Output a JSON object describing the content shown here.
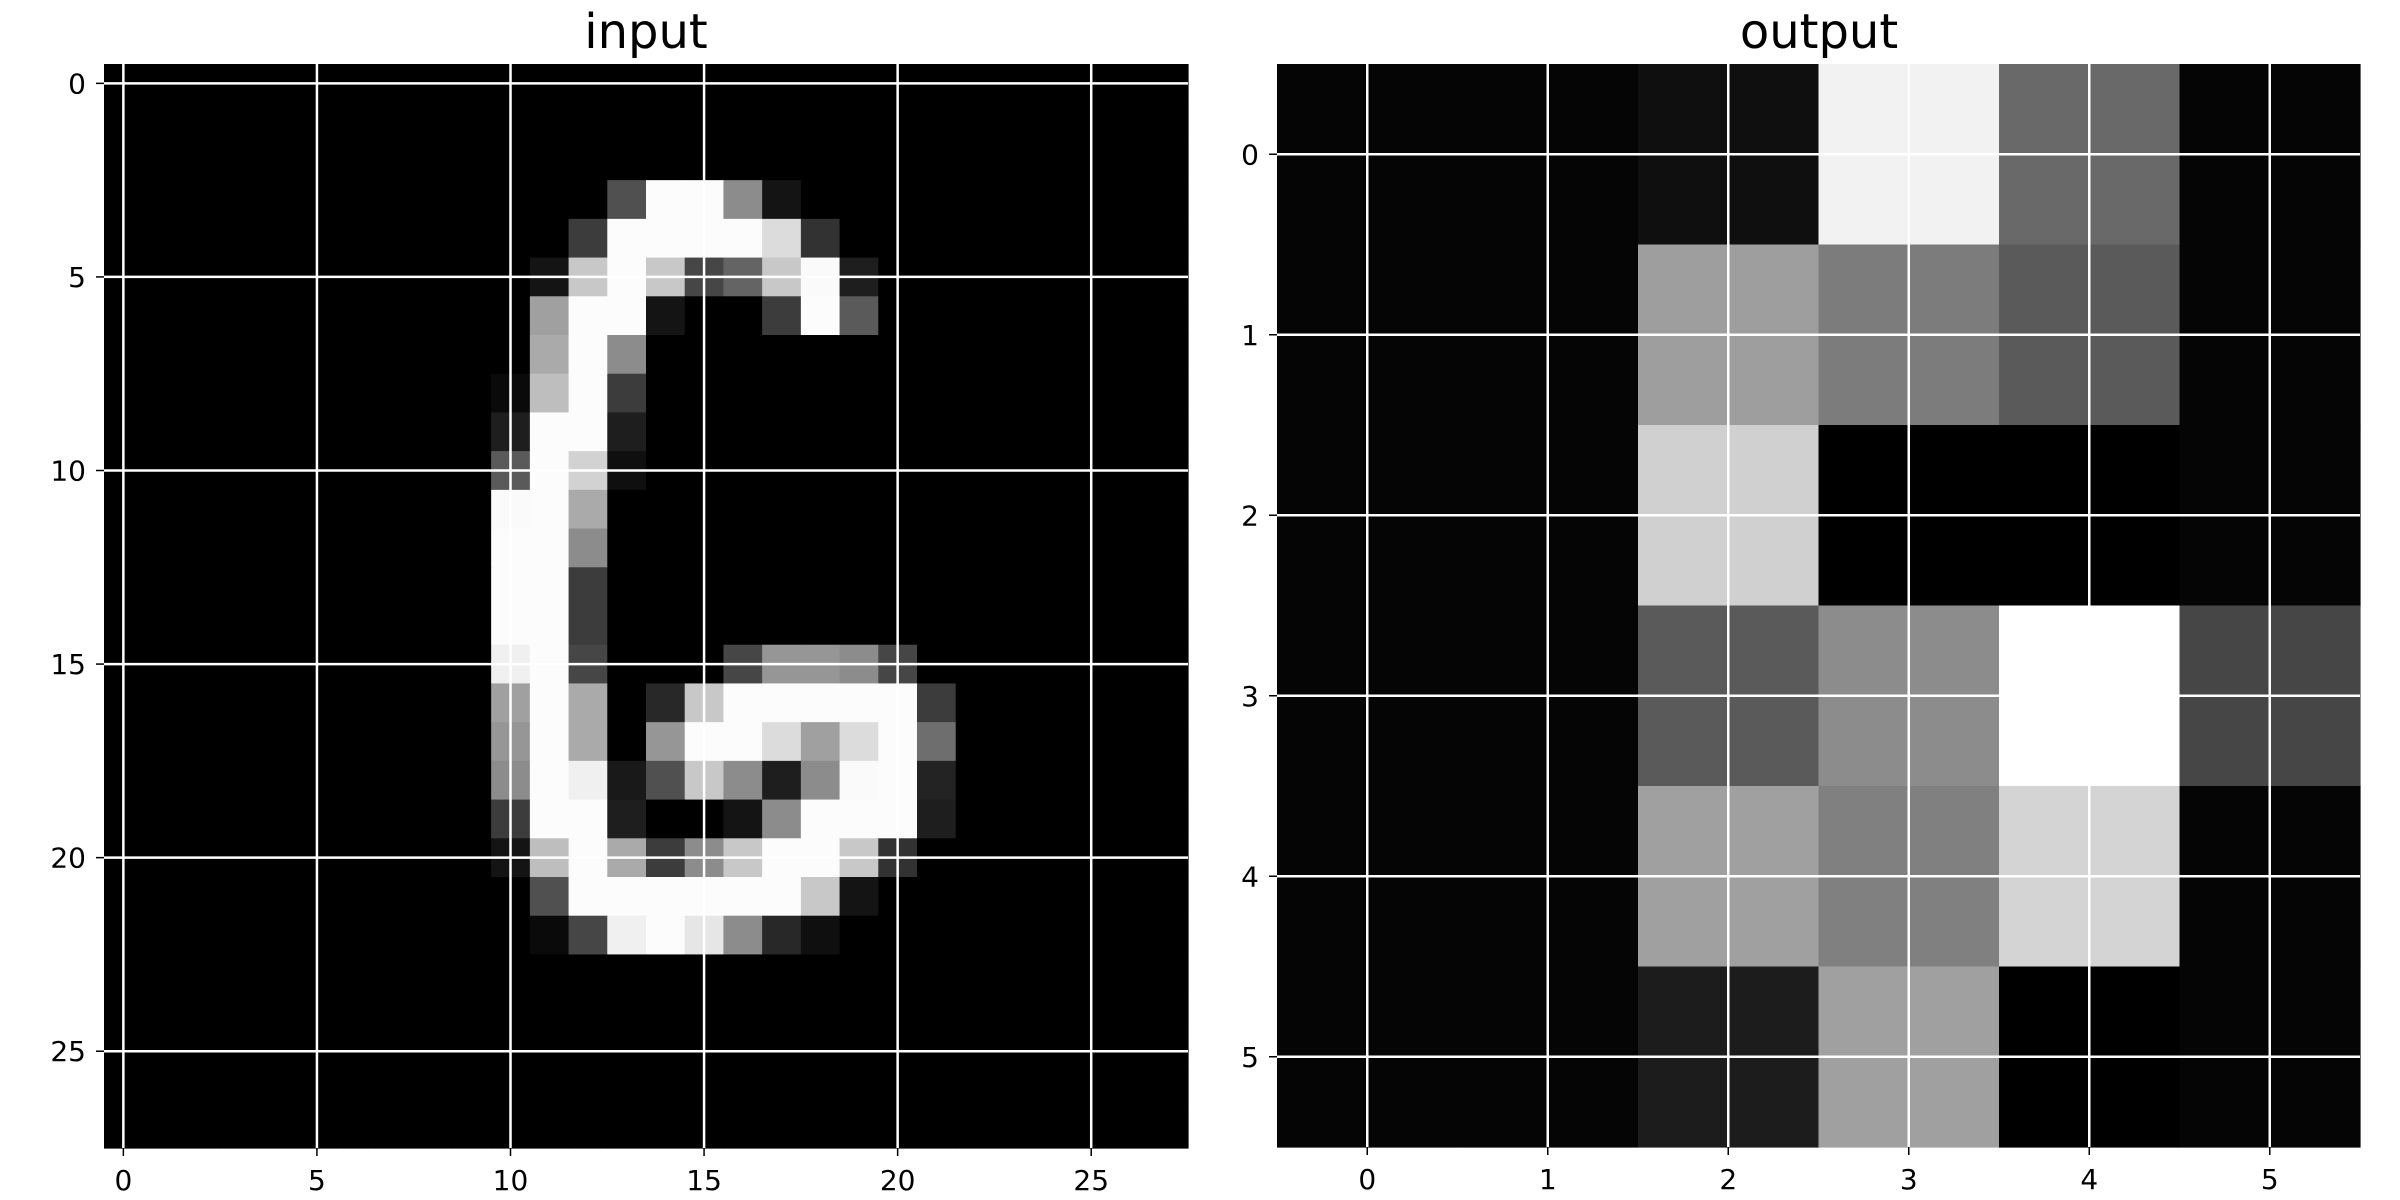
{
  "chart_data": [
    {
      "type": "heatmap",
      "title": "input",
      "colormap": "gray",
      "grid": true,
      "grid_color": "#ffffff",
      "xticks": [
        0,
        5,
        10,
        15,
        20,
        25
      ],
      "yticks": [
        0,
        5,
        10,
        15,
        20,
        25
      ],
      "xlim": [
        -0.5,
        27.5
      ],
      "ylim": [
        27.5,
        -0.5
      ],
      "values": [
        [
          0,
          0,
          0,
          0,
          0,
          0,
          0,
          0,
          0,
          0,
          0,
          0,
          0,
          0,
          0,
          0,
          0,
          0,
          0,
          0,
          0,
          0,
          0,
          0,
          0,
          0,
          0,
          0
        ],
        [
          0,
          0,
          0,
          0,
          0,
          0,
          0,
          0,
          0,
          0,
          0,
          0,
          0,
          0,
          0,
          0,
          0,
          0,
          0,
          0,
          0,
          0,
          0,
          0,
          0,
          0,
          0,
          0
        ],
        [
          0,
          0,
          0,
          0,
          0,
          0,
          0,
          0,
          0,
          0,
          0,
          0,
          0,
          0,
          0,
          0,
          0,
          0,
          0,
          0,
          0,
          0,
          0,
          0,
          0,
          0,
          0,
          0
        ],
        [
          0,
          0,
          0,
          0,
          0,
          0,
          0,
          0,
          0,
          0,
          0,
          0,
          0,
          80,
          252,
          252,
          140,
          20,
          0,
          0,
          0,
          0,
          0,
          0,
          0,
          0,
          0,
          0
        ],
        [
          0,
          0,
          0,
          0,
          0,
          0,
          0,
          0,
          0,
          0,
          0,
          0,
          60,
          252,
          252,
          252,
          252,
          220,
          50,
          0,
          0,
          0,
          0,
          0,
          0,
          0,
          0,
          0
        ],
        [
          0,
          0,
          0,
          0,
          0,
          0,
          0,
          0,
          0,
          0,
          0,
          20,
          200,
          252,
          200,
          70,
          100,
          200,
          250,
          30,
          0,
          0,
          0,
          0,
          0,
          0,
          0,
          0
        ],
        [
          0,
          0,
          0,
          0,
          0,
          0,
          0,
          0,
          0,
          0,
          0,
          160,
          252,
          252,
          20,
          0,
          0,
          60,
          252,
          90,
          0,
          0,
          0,
          0,
          0,
          0,
          0,
          0
        ],
        [
          0,
          0,
          0,
          0,
          0,
          0,
          0,
          0,
          0,
          0,
          0,
          170,
          252,
          140,
          0,
          0,
          0,
          0,
          0,
          0,
          0,
          0,
          0,
          0,
          0,
          0,
          0,
          0
        ],
        [
          0,
          0,
          0,
          0,
          0,
          0,
          0,
          0,
          0,
          0,
          10,
          190,
          252,
          60,
          0,
          0,
          0,
          0,
          0,
          0,
          0,
          0,
          0,
          0,
          0,
          0,
          0,
          0
        ],
        [
          0,
          0,
          0,
          0,
          0,
          0,
          0,
          0,
          0,
          0,
          30,
          252,
          252,
          30,
          0,
          0,
          0,
          0,
          0,
          0,
          0,
          0,
          0,
          0,
          0,
          0,
          0,
          0
        ],
        [
          0,
          0,
          0,
          0,
          0,
          0,
          0,
          0,
          0,
          0,
          90,
          252,
          210,
          15,
          0,
          0,
          0,
          0,
          0,
          0,
          0,
          0,
          0,
          0,
          0,
          0,
          0,
          0
        ],
        [
          0,
          0,
          0,
          0,
          0,
          0,
          0,
          0,
          0,
          0,
          250,
          252,
          170,
          0,
          0,
          0,
          0,
          0,
          0,
          0,
          0,
          0,
          0,
          0,
          0,
          0,
          0,
          0
        ],
        [
          0,
          0,
          0,
          0,
          0,
          0,
          0,
          0,
          0,
          0,
          252,
          252,
          140,
          0,
          0,
          0,
          0,
          0,
          0,
          0,
          0,
          0,
          0,
          0,
          0,
          0,
          0,
          0
        ],
        [
          0,
          0,
          0,
          0,
          0,
          0,
          0,
          0,
          0,
          0,
          252,
          252,
          60,
          0,
          0,
          0,
          0,
          0,
          0,
          0,
          0,
          0,
          0,
          0,
          0,
          0,
          0,
          0
        ],
        [
          0,
          0,
          0,
          0,
          0,
          0,
          0,
          0,
          0,
          0,
          252,
          252,
          60,
          0,
          0,
          0,
          0,
          0,
          0,
          0,
          0,
          0,
          0,
          0,
          0,
          0,
          0,
          0
        ],
        [
          0,
          0,
          0,
          0,
          0,
          0,
          0,
          0,
          0,
          0,
          240,
          252,
          70,
          0,
          0,
          0,
          70,
          150,
          150,
          140,
          70,
          0,
          0,
          0,
          0,
          0,
          0,
          0
        ],
        [
          0,
          0,
          0,
          0,
          0,
          0,
          0,
          0,
          0,
          0,
          160,
          252,
          170,
          0,
          40,
          200,
          252,
          252,
          252,
          252,
          252,
          60,
          0,
          0,
          0,
          0,
          0,
          0
        ],
        [
          0,
          0,
          0,
          0,
          0,
          0,
          0,
          0,
          0,
          0,
          150,
          252,
          170,
          0,
          150,
          252,
          252,
          220,
          160,
          220,
          252,
          110,
          0,
          0,
          0,
          0,
          0,
          0
        ],
        [
          0,
          0,
          0,
          0,
          0,
          0,
          0,
          0,
          0,
          0,
          140,
          252,
          240,
          25,
          80,
          200,
          140,
          30,
          140,
          250,
          252,
          35,
          0,
          0,
          0,
          0,
          0,
          0
        ],
        [
          0,
          0,
          0,
          0,
          0,
          0,
          0,
          0,
          0,
          0,
          60,
          252,
          252,
          30,
          0,
          0,
          20,
          140,
          252,
          252,
          252,
          30,
          0,
          0,
          0,
          0,
          0,
          0
        ],
        [
          0,
          0,
          0,
          0,
          0,
          0,
          0,
          0,
          0,
          0,
          20,
          190,
          252,
          170,
          60,
          140,
          200,
          252,
          252,
          200,
          50,
          0,
          0,
          0,
          0,
          0,
          0,
          0
        ],
        [
          0,
          0,
          0,
          0,
          0,
          0,
          0,
          0,
          0,
          0,
          0,
          80,
          252,
          252,
          252,
          252,
          252,
          252,
          200,
          20,
          0,
          0,
          0,
          0,
          0,
          0,
          0,
          0
        ],
        [
          0,
          0,
          0,
          0,
          0,
          0,
          0,
          0,
          0,
          0,
          0,
          10,
          70,
          240,
          252,
          230,
          140,
          40,
          15,
          0,
          0,
          0,
          0,
          0,
          0,
          0,
          0,
          0
        ],
        [
          0,
          0,
          0,
          0,
          0,
          0,
          0,
          0,
          0,
          0,
          0,
          0,
          0,
          0,
          0,
          0,
          0,
          0,
          0,
          0,
          0,
          0,
          0,
          0,
          0,
          0,
          0,
          0
        ],
        [
          0,
          0,
          0,
          0,
          0,
          0,
          0,
          0,
          0,
          0,
          0,
          0,
          0,
          0,
          0,
          0,
          0,
          0,
          0,
          0,
          0,
          0,
          0,
          0,
          0,
          0,
          0,
          0
        ],
        [
          0,
          0,
          0,
          0,
          0,
          0,
          0,
          0,
          0,
          0,
          0,
          0,
          0,
          0,
          0,
          0,
          0,
          0,
          0,
          0,
          0,
          0,
          0,
          0,
          0,
          0,
          0,
          0
        ],
        [
          0,
          0,
          0,
          0,
          0,
          0,
          0,
          0,
          0,
          0,
          0,
          0,
          0,
          0,
          0,
          0,
          0,
          0,
          0,
          0,
          0,
          0,
          0,
          0,
          0,
          0,
          0,
          0
        ],
        [
          0,
          0,
          0,
          0,
          0,
          0,
          0,
          0,
          0,
          0,
          0,
          0,
          0,
          0,
          0,
          0,
          0,
          0,
          0,
          0,
          0,
          0,
          0,
          0,
          0,
          0,
          0,
          0
        ]
      ]
    },
    {
      "type": "heatmap",
      "title": "output",
      "colormap": "gray",
      "grid": true,
      "grid_color": "#ffffff",
      "xticks": [
        0,
        1,
        2,
        3,
        4,
        5
      ],
      "yticks": [
        0,
        1,
        2,
        3,
        4,
        5
      ],
      "xlim": [
        -0.5,
        5.5
      ],
      "ylim": [
        5.5,
        -0.5
      ],
      "values": [
        [
          5,
          5,
          15,
          242,
          105,
          5
        ],
        [
          5,
          5,
          158,
          124,
          90,
          5
        ],
        [
          5,
          5,
          208,
          0,
          0,
          5
        ],
        [
          5,
          5,
          90,
          140,
          255,
          70
        ],
        [
          5,
          5,
          160,
          128,
          212,
          5
        ],
        [
          5,
          5,
          28,
          160,
          0,
          5
        ]
      ]
    }
  ]
}
